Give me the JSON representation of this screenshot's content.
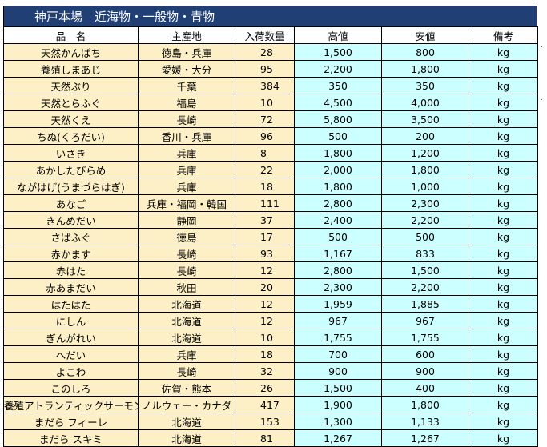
{
  "title": "神戸本場　近海物・一般物・青物",
  "columns": {
    "name": "品　名",
    "origin": "主産地",
    "qty": "入荷数量",
    "high": "高値",
    "low": "安値",
    "note": "備考"
  },
  "rows": [
    {
      "name": "天然かんぱち",
      "origin": "徳島・兵庫",
      "qty": "28",
      "high": "1,500",
      "low": "800",
      "note": "kg"
    },
    {
      "name": "養殖しまあじ",
      "origin": "愛媛・大分",
      "qty": "95",
      "high": "2,200",
      "low": "1,800",
      "note": "kg"
    },
    {
      "name": "天然ぶり",
      "origin": "千葉",
      "qty": "384",
      "high": "350",
      "low": "350",
      "note": "kg"
    },
    {
      "name": "天然とらふぐ",
      "origin": "福島",
      "qty": "10",
      "high": "4,500",
      "low": "4,000",
      "note": "kg"
    },
    {
      "name": "天然くえ",
      "origin": "長崎",
      "qty": "72",
      "high": "5,800",
      "low": "3,500",
      "note": "kg"
    },
    {
      "name": "ちぬ(くろだい)",
      "origin": "香川・兵庫",
      "qty": "96",
      "high": "500",
      "low": "200",
      "note": "kg"
    },
    {
      "name": "いさき",
      "origin": "兵庫",
      "qty": "8",
      "high": "1,800",
      "low": "1,200",
      "note": "kg"
    },
    {
      "name": "あかしたびらめ",
      "origin": "兵庫",
      "qty": "22",
      "high": "2,000",
      "low": "1,800",
      "note": "kg"
    },
    {
      "name": "ながはげ(うまづらはぎ)",
      "origin": "兵庫",
      "qty": "18",
      "high": "1,800",
      "low": "1,000",
      "note": "kg"
    },
    {
      "name": "あなご",
      "origin": "兵庫・福岡・韓国",
      "qty": "111",
      "high": "2,800",
      "low": "2,300",
      "note": "kg"
    },
    {
      "name": "きんめだい",
      "origin": "静岡",
      "qty": "37",
      "high": "2,400",
      "low": "2,200",
      "note": "kg"
    },
    {
      "name": "さばふぐ",
      "origin": "徳島",
      "qty": "17",
      "high": "500",
      "low": "500",
      "note": "kg"
    },
    {
      "name": "赤かます",
      "origin": "長崎",
      "qty": "93",
      "high": "1,167",
      "low": "833",
      "note": "kg"
    },
    {
      "name": "赤はた",
      "origin": "長崎",
      "qty": "12",
      "high": "2,800",
      "low": "1,500",
      "note": "kg"
    },
    {
      "name": "赤あまだい",
      "origin": "秋田",
      "qty": "20",
      "high": "2,300",
      "low": "2,200",
      "note": "kg"
    },
    {
      "name": "はたはた",
      "origin": "北海道",
      "qty": "12",
      "high": "1,959",
      "low": "1,885",
      "note": "kg"
    },
    {
      "name": "にしん",
      "origin": "北海道",
      "qty": "12",
      "high": "967",
      "low": "967",
      "note": "kg"
    },
    {
      "name": "ぎんがれい",
      "origin": "北海道",
      "qty": "10",
      "high": "1,755",
      "low": "1,755",
      "note": "kg"
    },
    {
      "name": "へだい",
      "origin": "兵庫",
      "qty": "18",
      "high": "700",
      "low": "600",
      "note": "kg"
    },
    {
      "name": "よこわ",
      "origin": "長崎",
      "qty": "32",
      "high": "900",
      "low": "900",
      "note": "kg"
    },
    {
      "name": "このしろ",
      "origin": "佐賀・熊本",
      "qty": "26",
      "high": "1,500",
      "low": "400",
      "note": "kg"
    },
    {
      "name": "養殖アトランティックサーモン",
      "origin": "ノルウェー・カナダ",
      "qty": "417",
      "high": "1,900",
      "low": "1,800",
      "note": "kg"
    },
    {
      "name": "まだら フィーレ",
      "origin": "北海道",
      "qty": "153",
      "high": "1,300",
      "low": "1,133",
      "note": "kg"
    },
    {
      "name": "まだら スキミ",
      "origin": "北海道",
      "qty": "81",
      "high": "1,267",
      "low": "1,267",
      "note": "kg"
    }
  ]
}
